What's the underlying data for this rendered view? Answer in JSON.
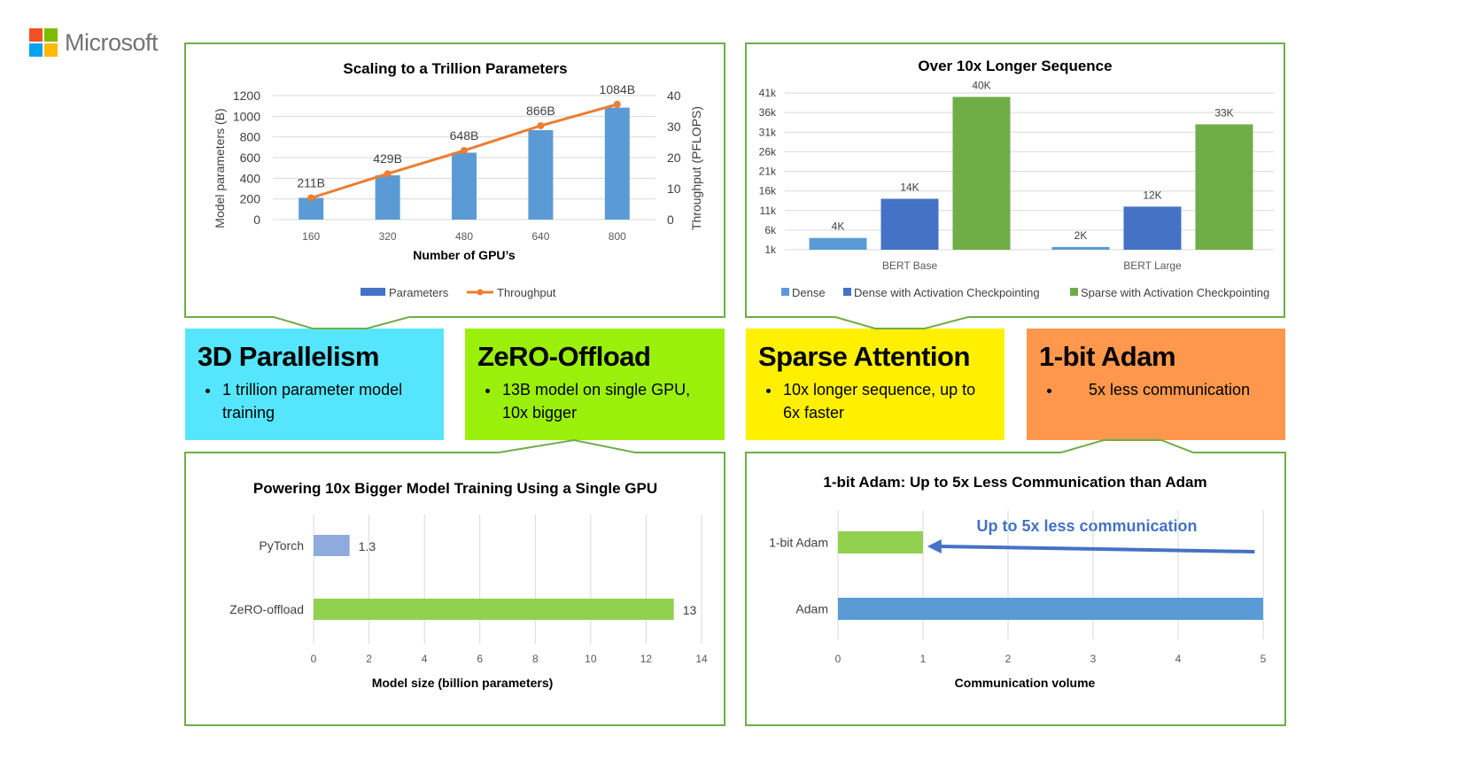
{
  "logo": {
    "text": "Microsoft",
    "colors": [
      "#f25022",
      "#7fba00",
      "#00a4ef",
      "#ffb900"
    ]
  },
  "colors": {
    "border": "#70ad47",
    "tile_3d": "#55e6fd",
    "tile_zero": "#9bf00b",
    "tile_sparse": "#fff000",
    "tile_adam": "#ff984d"
  },
  "tiles": [
    {
      "title": "3D Parallelism",
      "bullet": "1 trillion parameter model training"
    },
    {
      "title": "ZeRO-Offload",
      "bullet": "13B model on single GPU, 10x bigger"
    },
    {
      "title": "Sparse Attention",
      "bullet": "10x longer sequence, up to 6x faster"
    },
    {
      "title": "1-bit Adam",
      "bullet": "5x less communication"
    }
  ],
  "chart_data": [
    {
      "type": "bar+line",
      "title": "Scaling to a Trillion Parameters",
      "xlabel": "Number of GPU’s",
      "ylabel": "Model parameters (B)",
      "y2label": "Throughput (PFLOPS)",
      "categories": [
        "160",
        "320",
        "480",
        "640",
        "800"
      ],
      "ylim": [
        0,
        1200
      ],
      "yticks": [
        0,
        200,
        400,
        600,
        800,
        1000,
        1200
      ],
      "y2lim": [
        0,
        40
      ],
      "y2ticks": [
        0,
        10,
        20,
        30,
        40
      ],
      "series": [
        {
          "name": "Parameters",
          "type": "bar",
          "values": [
            211,
            429,
            648,
            866,
            1084
          ],
          "labels": [
            "211B",
            "429B",
            "648B",
            "866B",
            "1084B"
          ],
          "color": "#5b9bd5",
          "legend_color": "#4472c4"
        },
        {
          "name": "Throughput",
          "type": "line",
          "axis": "right",
          "values": [
            7,
            14.8,
            22.3,
            30.3,
            37.2
          ],
          "color": "#ed7d31"
        }
      ],
      "grid": true,
      "legend": "bottom"
    },
    {
      "type": "bar",
      "title": "Over 10x Longer Sequence",
      "categories": [
        "BERT Base",
        "BERT Large"
      ],
      "ylim": [
        1,
        41
      ],
      "yticks": [
        1,
        6,
        11,
        16,
        21,
        26,
        31,
        36,
        41
      ],
      "ytick_labels": [
        "1k",
        "6k",
        "11k",
        "16k",
        "21k",
        "26k",
        "31k",
        "36k",
        "41k"
      ],
      "series": [
        {
          "name": "Dense",
          "values": [
            4,
            1.7
          ],
          "labels": [
            "4K",
            "2K"
          ],
          "color": "#5b9bd5"
        },
        {
          "name": "Dense with Activation Checkpointing",
          "values": [
            14,
            12
          ],
          "labels": [
            "14K",
            "12K"
          ],
          "color": "#4472c4"
        },
        {
          "name": "Sparse with Activation Checkpointing",
          "values": [
            40,
            33
          ],
          "labels": [
            "40K",
            "33K"
          ],
          "color": "#70ad47"
        }
      ],
      "grid": true,
      "legend": "bottom"
    },
    {
      "type": "bar-horizontal",
      "title": "Powering 10x Bigger Model Training Using a Single GPU",
      "xlabel": "Model size (billion parameters)",
      "categories": [
        "PyTorch",
        "ZeRO-offload"
      ],
      "values": [
        1.3,
        13
      ],
      "labels": [
        "1.3",
        "13"
      ],
      "colors": [
        "#8faadc",
        "#92d050"
      ],
      "xlim": [
        0,
        14
      ],
      "xticks": [
        0,
        2,
        4,
        6,
        8,
        10,
        12,
        14
      ],
      "grid": true
    },
    {
      "type": "bar-horizontal",
      "title": "1-bit Adam: Up to 5x Less Communication than Adam",
      "xlabel": "Communication volume",
      "categories": [
        "1-bit Adam",
        "Adam"
      ],
      "values": [
        1,
        5
      ],
      "colors": [
        "#92d050",
        "#5b9bd5"
      ],
      "xlim": [
        0,
        5
      ],
      "xticks": [
        0,
        1,
        2,
        3,
        4,
        5
      ],
      "annotation": {
        "text": "Up to 5x less communication",
        "color": "#4472c4",
        "arrow_from": 4.9,
        "arrow_to": 1.05
      },
      "grid": true
    }
  ]
}
